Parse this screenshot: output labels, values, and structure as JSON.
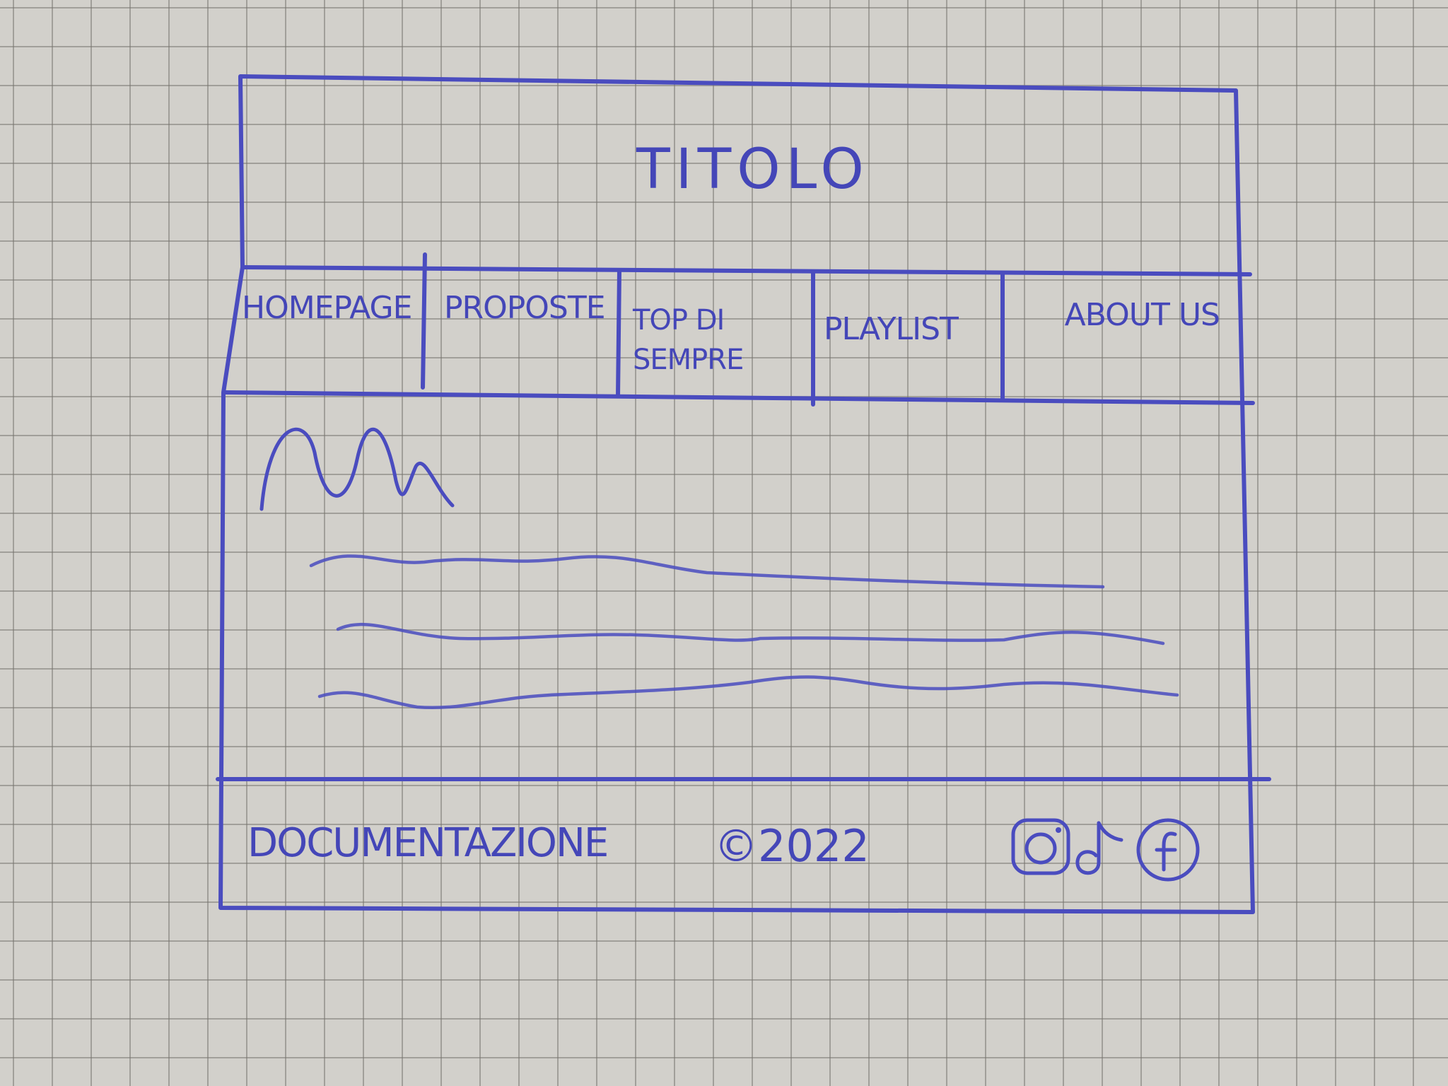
{
  "header": {
    "title": "TITOLO"
  },
  "nav": {
    "items": [
      {
        "label": "HOMEPAGE"
      },
      {
        "label": "PROPOSTE"
      },
      {
        "label": "TOP DI SEMPRE"
      },
      {
        "label": "PLAYLIST"
      },
      {
        "label": "ABOUT US"
      }
    ]
  },
  "footer": {
    "documentation": "DOCUMENTAZIONE",
    "copyright": "©2022",
    "social_icons": [
      "instagram-icon",
      "tiktok-icon",
      "facebook-icon"
    ]
  },
  "colors": {
    "ink": "#4a4cbf",
    "paper": "#d2d0cb",
    "grid": "#787670"
  }
}
